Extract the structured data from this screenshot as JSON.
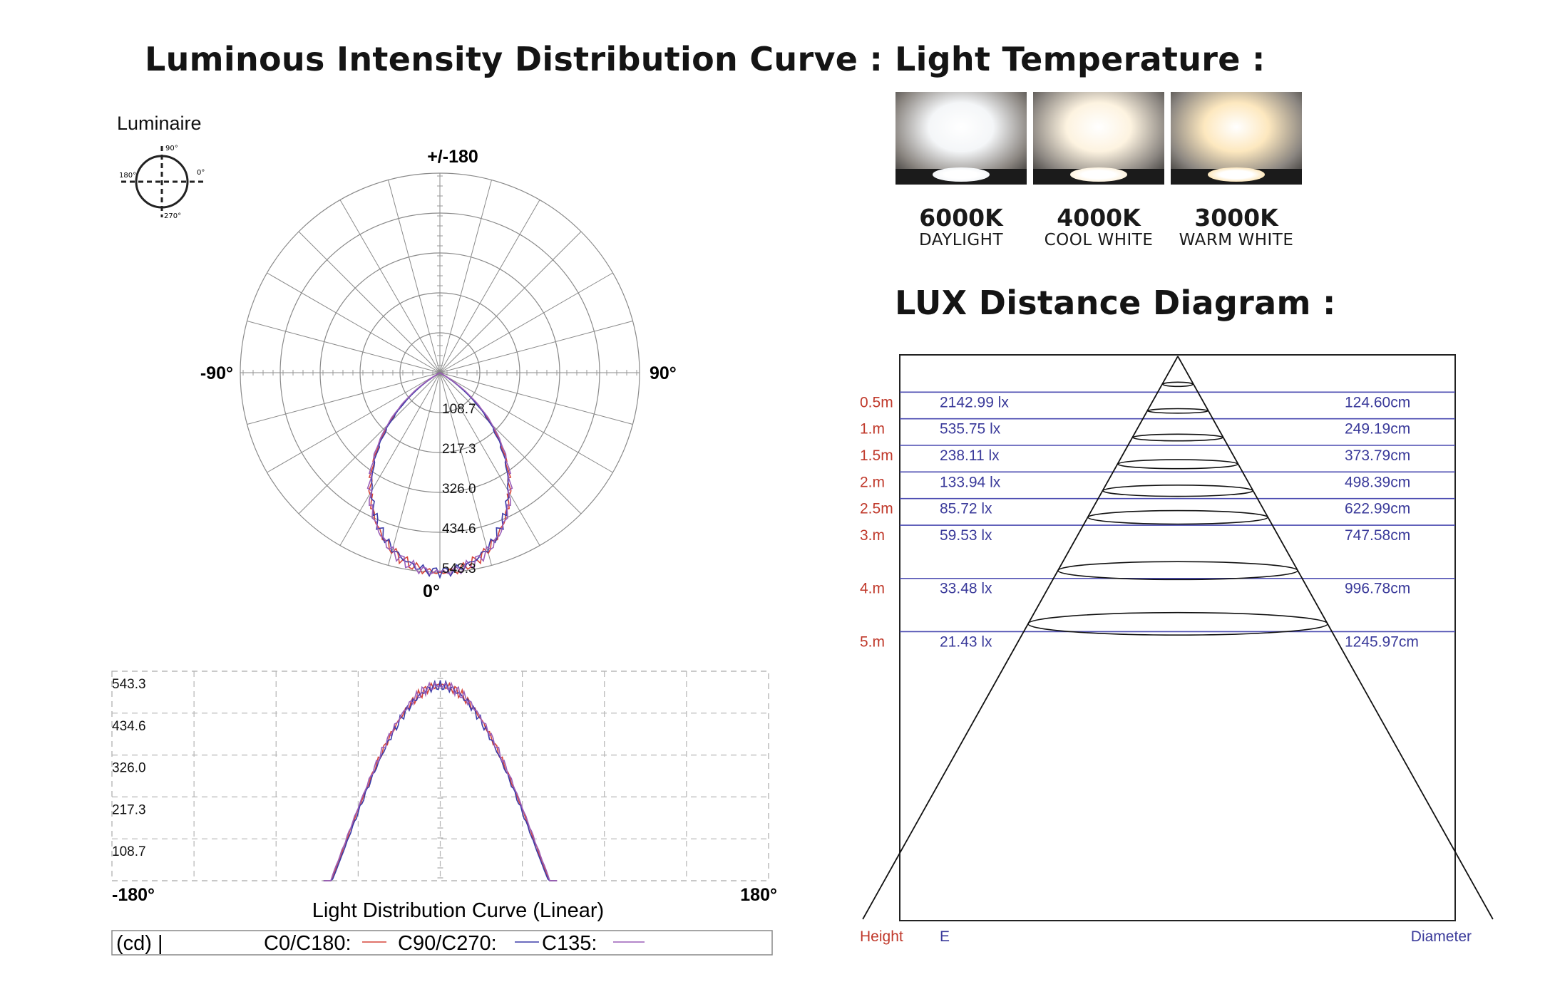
{
  "headings": {
    "intensity": "Luminous Intensity Distribution Curve :",
    "temperature": "Light Temperature :",
    "lux": "LUX Distance Diagram :"
  },
  "swatches": [
    {
      "kelvin": "6000K",
      "name": "DAYLIGHT",
      "color": "#f4f6f8"
    },
    {
      "kelvin": "4000K",
      "name": "COOL WHITE",
      "color": "#fdf3e0"
    },
    {
      "kelvin": "3000K",
      "name": "WARM WHITE",
      "color": "#fde8bf"
    }
  ],
  "luminaire": {
    "label": "Luminaire",
    "angles": [
      "90°",
      "0°",
      "180°",
      "270°"
    ]
  },
  "chart_data": [
    {
      "type": "polar",
      "top_label": "+/-180",
      "bottom_label": "0°",
      "left_label": "-90°",
      "right_label": "90°",
      "radial_ticks": [
        "108.7",
        "217.3",
        "326.0",
        "434.6",
        "543.3"
      ],
      "rmax": 543.3,
      "peak": 543.3,
      "beam_half_angle_deg": 60,
      "series": [
        {
          "name": "C0/C180",
          "color": "#d6453a"
        },
        {
          "name": "C90/C270",
          "color": "#3b3ba8"
        },
        {
          "name": "C135",
          "color": "#9b5fb8"
        }
      ]
    },
    {
      "type": "line",
      "title": "Light Distribution Curve (Linear)",
      "x_start_label": "-180°",
      "x_end_label": "180°",
      "xlim": [
        -180,
        180
      ],
      "ylim": [
        0,
        543.3
      ],
      "y_ticks": [
        "543.3",
        "434.6",
        "326.0",
        "217.3",
        "108.7"
      ],
      "legend": {
        "unit": "(cd) |",
        "entries": [
          "C0/C180:",
          "C90/C270:",
          "C135:"
        ]
      }
    },
    {
      "type": "table",
      "title": "LUX Distance Diagram",
      "col_height": "Height",
      "col_e": "E",
      "col_diameter": "Diameter",
      "rows": [
        {
          "height": "0.5m",
          "h": 0.5,
          "lux": "2142.99 lx",
          "diameter": "124.60cm"
        },
        {
          "height": "1.m",
          "h": 1.0,
          "lux": "535.75 lx",
          "diameter": "249.19cm"
        },
        {
          "height": "1.5m",
          "h": 1.5,
          "lux": "238.11 lx",
          "diameter": "373.79cm"
        },
        {
          "height": "2.m",
          "h": 2.0,
          "lux": "133.94 lx",
          "diameter": "498.39cm"
        },
        {
          "height": "2.5m",
          "h": 2.5,
          "lux": "85.72 lx",
          "diameter": "622.99cm"
        },
        {
          "height": "3.m",
          "h": 3.0,
          "lux": "59.53 lx",
          "diameter": "747.58cm"
        },
        {
          "height": "4.m",
          "h": 4.0,
          "lux": "33.48 lx",
          "diameter": "996.78cm"
        },
        {
          "height": "5.m",
          "h": 5.0,
          "lux": "21.43 lx",
          "diameter": "1245.97cm"
        }
      ]
    }
  ]
}
